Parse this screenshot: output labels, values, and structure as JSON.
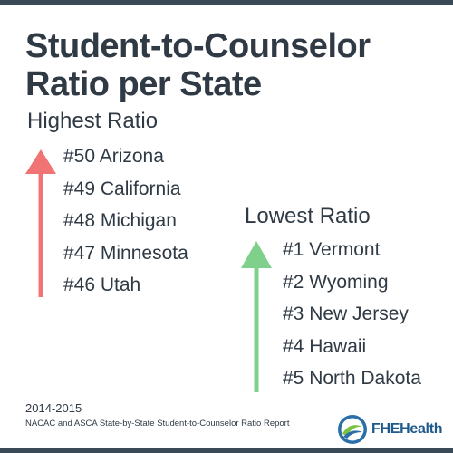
{
  "title": {
    "line1": "Student-to-Counselor",
    "line2": "Ratio per State"
  },
  "highest": {
    "heading": "Highest Ratio",
    "items": [
      "#50 Arizona",
      "#49 California",
      "#48 Michigan",
      "#47 Minnesota",
      "#46 Utah"
    ]
  },
  "lowest": {
    "heading": "Lowest Ratio",
    "items": [
      "#1 Vermont",
      "#2 Wyoming",
      "#3 New Jersey",
      "#4 Hawaii",
      "#5 North Dakota"
    ]
  },
  "footer": {
    "year": "2014-2015",
    "source": "NACAC and ASCA State-by-State Student-to-Counselor Ratio Report"
  },
  "logo": {
    "text": "FHEHealth"
  },
  "colors": {
    "highest_arrow": "#f07474",
    "lowest_arrow": "#7fd08a",
    "title_text": "#2f3a45",
    "bars": "#3a4a57",
    "logo_text": "#1f5a8c"
  }
}
